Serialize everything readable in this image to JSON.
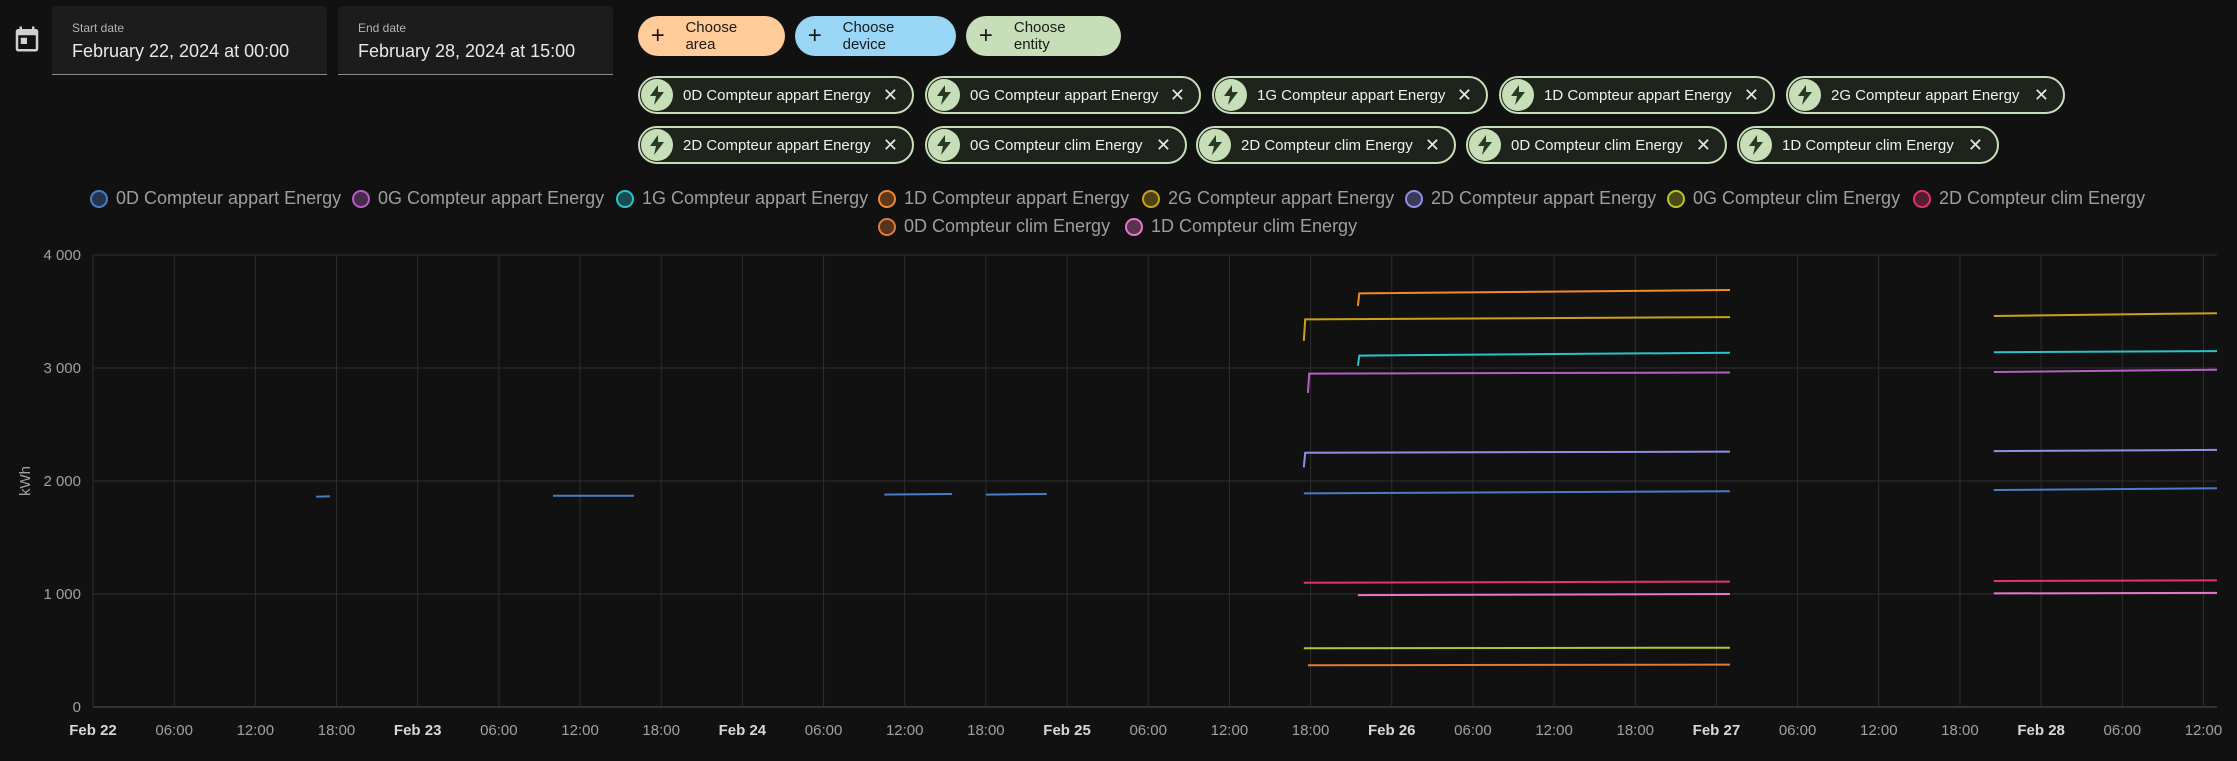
{
  "date_range": {
    "start_label": "Start date",
    "start_value": "February 22, 2024 at 00:00",
    "end_label": "End date",
    "end_value": "February 28, 2024 at 15:00"
  },
  "targets": {
    "area_label": "Choose area",
    "device_label": "Choose device",
    "entity_label": "Choose entity"
  },
  "entity_chips": [
    "0D Compteur appart Energy",
    "0G Compteur appart Energy",
    "1G Compteur appart Energy",
    "1D Compteur appart Energy",
    "2G Compteur appart Energy",
    "2D Compteur appart Energy",
    "0G Compteur clim Energy",
    "2D Compteur clim Energy",
    "0D Compteur clim Energy",
    "1D Compteur clim Energy"
  ],
  "colors": {
    "area_chip": "#ffcc99",
    "device_chip": "#99d5f5",
    "entity_chip": "#c6dfb9",
    "grid": "#2e2e2e"
  },
  "chart_data": {
    "type": "line",
    "ylabel": "kWh",
    "ylim": [
      0,
      4000
    ],
    "y_ticks": [
      "0",
      "1 000",
      "2 000",
      "3 000",
      "4 000"
    ],
    "x_ticks": [
      "Feb 22",
      "06:00",
      "12:00",
      "18:00",
      "Feb 23",
      "06:00",
      "12:00",
      "18:00",
      "Feb 24",
      "06:00",
      "12:00",
      "18:00",
      "Feb 25",
      "06:00",
      "12:00",
      "18:00",
      "Feb 26",
      "06:00",
      "12:00",
      "18:00",
      "Feb 27",
      "06:00",
      "12:00",
      "18:00",
      "Feb 28",
      "06:00",
      "12:00"
    ],
    "x_range_hours": [
      0,
      157
    ],
    "grid": true,
    "legend_position": "top",
    "series": [
      {
        "name": "0D Compteur appart Energy",
        "color": "#4a7cc6",
        "segments": [
          [
            [
              16.5,
              1860
            ],
            [
              17.5,
              1865
            ]
          ],
          [
            [
              34,
              1870
            ],
            [
              40,
              1870
            ]
          ],
          [
            [
              58.5,
              1880
            ],
            [
              63.5,
              1885
            ]
          ],
          [
            [
              66,
              1880
            ],
            [
              70.5,
              1885
            ]
          ],
          [
            [
              89.5,
              1890
            ],
            [
              121,
              1910
            ]
          ],
          [
            [
              140.5,
              1920
            ],
            [
              157,
              1935
            ]
          ]
        ]
      },
      {
        "name": "0G Compteur appart Energy",
        "color": "#b55fc4",
        "segments": [
          [
            [
              89.8,
              2780
            ],
            [
              89.9,
              2950
            ],
            [
              121,
              2960
            ]
          ],
          [
            [
              140.5,
              2965
            ],
            [
              157,
              2985
            ]
          ]
        ]
      },
      {
        "name": "1G Compteur appart Energy",
        "color": "#2bc2c9",
        "segments": [
          [
            [
              93.5,
              3020
            ],
            [
              93.6,
              3110
            ],
            [
              121,
              3135
            ]
          ],
          [
            [
              140.5,
              3140
            ],
            [
              157,
              3150
            ]
          ]
        ]
      },
      {
        "name": "1D Compteur appart Energy",
        "color": "#f08a2e",
        "segments": [
          [
            [
              93.5,
              3550
            ],
            [
              93.6,
              3660
            ],
            [
              121,
              3690
            ]
          ]
        ]
      },
      {
        "name": "2G Compteur appart Energy",
        "color": "#c9a21a",
        "segments": [
          [
            [
              89.5,
              3240
            ],
            [
              89.6,
              3430
            ],
            [
              121,
              3450
            ]
          ],
          [
            [
              140.5,
              3460
            ],
            [
              157,
              3485
            ]
          ]
        ]
      },
      {
        "name": "2D Compteur appart Energy",
        "color": "#8f8fe8",
        "segments": [
          [
            [
              89.5,
              2120
            ],
            [
              89.6,
              2250
            ],
            [
              121,
              2260
            ]
          ],
          [
            [
              140.5,
              2265
            ],
            [
              157,
              2275
            ]
          ]
        ]
      },
      {
        "name": "0G Compteur clim Energy",
        "color": "#b9c42a",
        "segments": [
          [
            [
              89.5,
              520
            ],
            [
              121,
              525
            ]
          ]
        ]
      },
      {
        "name": "2D Compteur clim Energy",
        "color": "#e2336d",
        "segments": [
          [
            [
              89.5,
              1100
            ],
            [
              121,
              1110
            ]
          ],
          [
            [
              140.5,
              1115
            ],
            [
              157,
              1120
            ]
          ]
        ]
      },
      {
        "name": "0D Compteur clim Energy",
        "color": "#e07a3a",
        "segments": [
          [
            [
              89.8,
              370
            ],
            [
              121,
              375
            ]
          ]
        ]
      },
      {
        "name": "1D Compteur clim Energy",
        "color": "#e877c8",
        "segments": [
          [
            [
              93.5,
              990
            ],
            [
              121,
              1000
            ]
          ],
          [
            [
              140.5,
              1005
            ],
            [
              157,
              1010
            ]
          ]
        ]
      }
    ]
  }
}
